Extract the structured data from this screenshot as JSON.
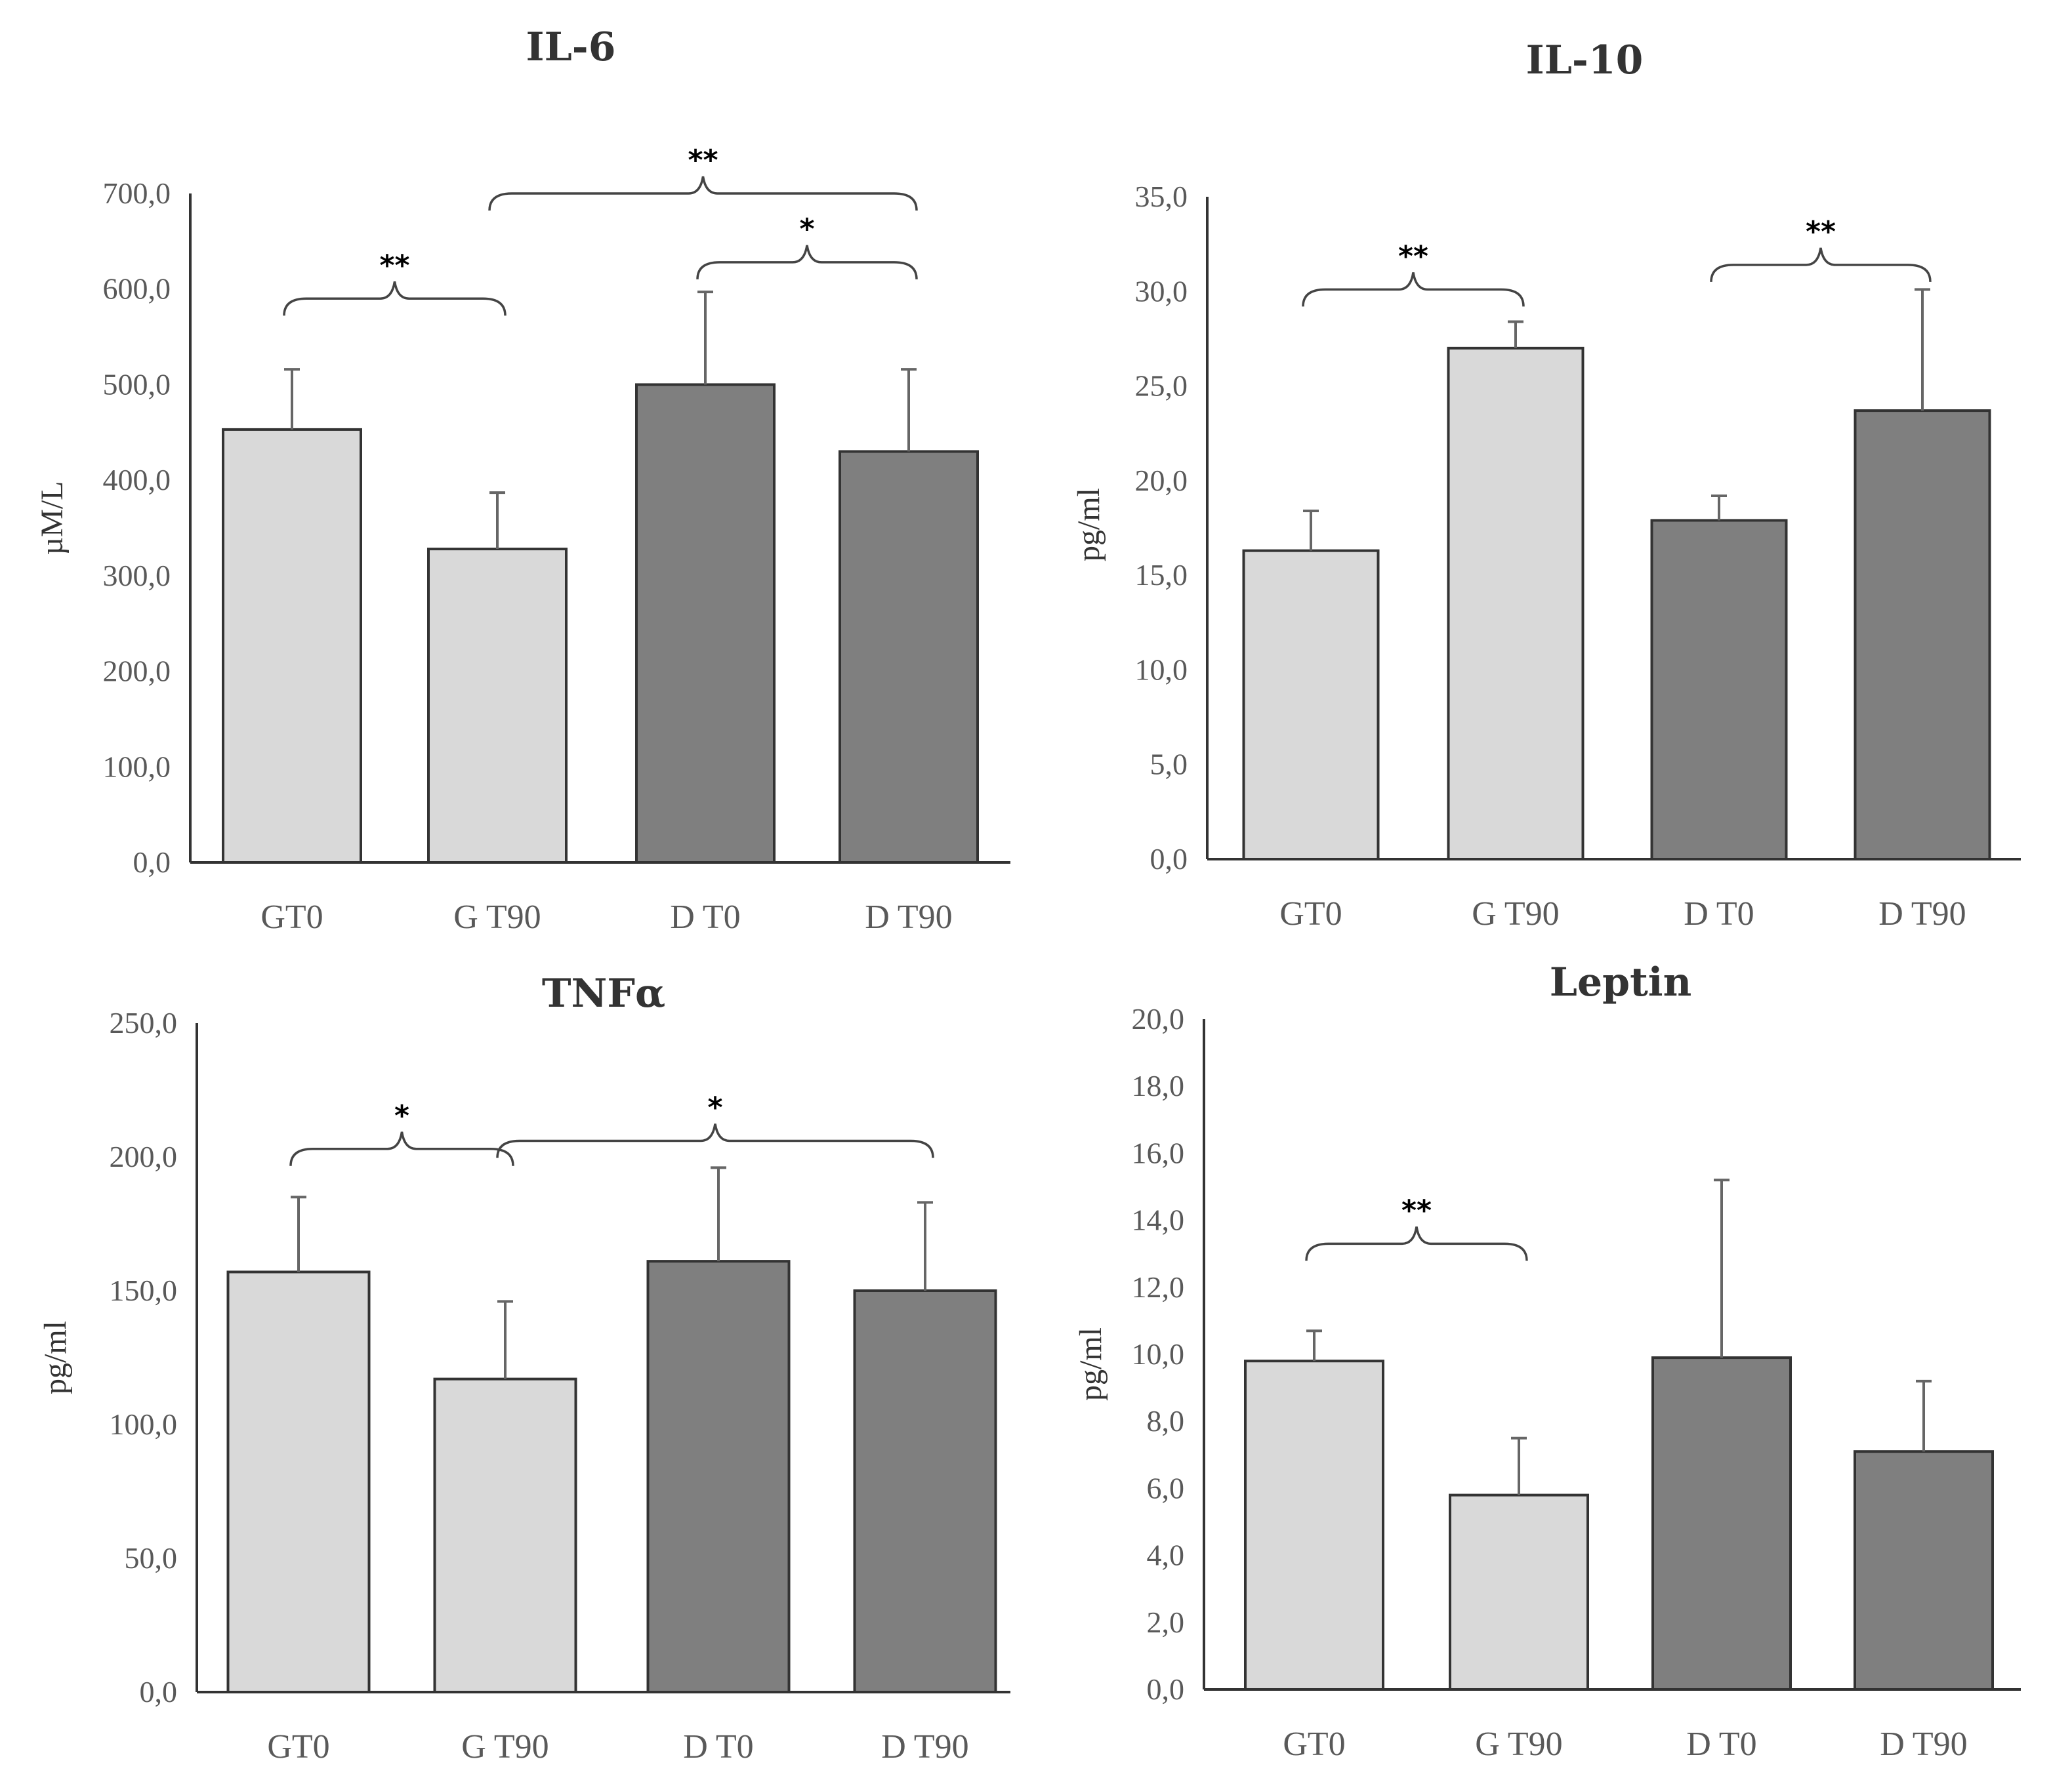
{
  "chart_data": [
    {
      "type": "bar",
      "title": "IL-6",
      "ylabel": "µM/L",
      "xlabel": "",
      "ylim": [
        0,
        700
      ],
      "yticks": [
        "0,0",
        "100,0",
        "200,0",
        "300,0",
        "400,0",
        "500,0",
        "600,0",
        "700,0"
      ],
      "categories": [
        "GT0",
        "G T90",
        "D T0",
        "D T90"
      ],
      "values": [
        453,
        328,
        500,
        430
      ],
      "errors": [
        63,
        59,
        97,
        86
      ],
      "colors": [
        "#d9d9d9",
        "#d9d9d9",
        "#7f7f7f",
        "#7f7f7f"
      ],
      "significance": [
        {
          "from": 0,
          "to": 1,
          "label": "**",
          "level": 590
        },
        {
          "from": 1,
          "to": 3,
          "label": "**",
          "level": 700
        },
        {
          "from": 2,
          "to": 3,
          "label": "*",
          "level": 628
        }
      ]
    },
    {
      "type": "bar",
      "title": "IL-10",
      "ylabel": "pg/ml",
      "xlabel": "",
      "ylim": [
        0,
        35
      ],
      "yticks": [
        "0,0",
        "5,0",
        "10,0",
        "15,0",
        "20,0",
        "25,0",
        "30,0",
        "35,0"
      ],
      "categories": [
        "GT0",
        "G T90",
        "D T0",
        "D T90"
      ],
      "values": [
        16.3,
        27.0,
        17.9,
        23.7
      ],
      "errors": [
        2.1,
        1.4,
        1.3,
        6.4
      ],
      "colors": [
        "#d9d9d9",
        "#d9d9d9",
        "#7f7f7f",
        "#7f7f7f"
      ],
      "significance": [
        {
          "from": 0,
          "to": 1,
          "label": "**",
          "level": 30.1
        },
        {
          "from": 2,
          "to": 3,
          "label": "**",
          "level": 31.4
        }
      ]
    },
    {
      "type": "bar",
      "title": "TNFα",
      "ylabel": "pg/ml",
      "xlabel": "",
      "ylim": [
        0,
        250
      ],
      "yticks": [
        "0,0",
        "50,0",
        "100,0",
        "150,0",
        "200,0",
        "250,0"
      ],
      "categories": [
        "GT0",
        "G T90",
        "D T0",
        "D T90"
      ],
      "values": [
        157,
        117,
        161,
        150
      ],
      "errors": [
        28,
        29,
        35,
        33
      ],
      "colors": [
        "#d9d9d9",
        "#d9d9d9",
        "#7f7f7f",
        "#7f7f7f"
      ],
      "significance": [
        {
          "from": 0,
          "to": 1,
          "label": "*",
          "level": 203
        },
        {
          "from": 1,
          "to": 3,
          "label": "*",
          "level": 206
        }
      ]
    },
    {
      "type": "bar",
      "title": "Leptin",
      "ylabel": "pg/ml",
      "xlabel": "",
      "ylim": [
        0,
        20
      ],
      "yticks": [
        "0,0",
        "2,0",
        "4,0",
        "6,0",
        "8,0",
        "10,0",
        "12,0",
        "14,0",
        "16,0",
        "18,0",
        "20,0"
      ],
      "categories": [
        "GT0",
        "G T90",
        "D T0",
        "D T90"
      ],
      "values": [
        9.8,
        5.8,
        9.9,
        7.1
      ],
      "errors": [
        0.9,
        1.7,
        5.3,
        2.1
      ],
      "colors": [
        "#d9d9d9",
        "#d9d9d9",
        "#7f7f7f",
        "#7f7f7f"
      ],
      "significance": [
        {
          "from": 0,
          "to": 1,
          "label": "**",
          "level": 13.3
        }
      ]
    }
  ]
}
